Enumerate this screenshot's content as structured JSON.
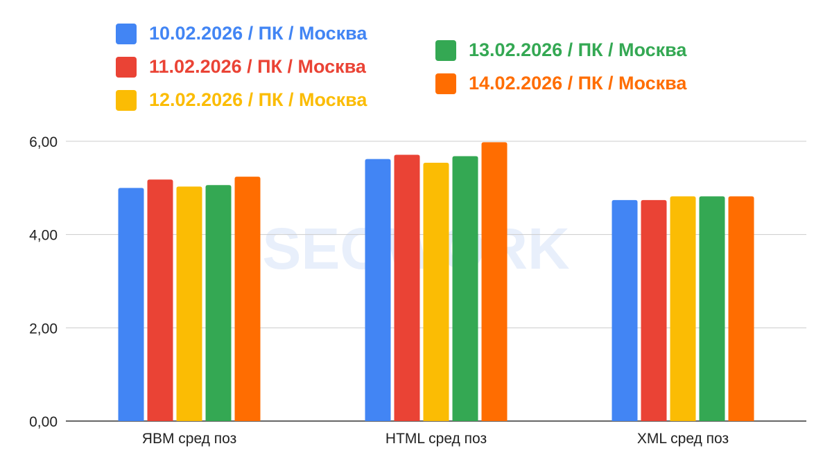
{
  "watermark": "SEOWORK",
  "chart_data": {
    "type": "bar",
    "title": "",
    "xlabel": "",
    "ylabel": "",
    "categories": [
      "ЯВМ сред поз",
      "HTML сред поз",
      "XML сред поз"
    ],
    "ylim": [
      0,
      6
    ],
    "yticks": [
      "0,00",
      "2,00",
      "4,00",
      "6,00"
    ],
    "ytick_values": [
      0,
      2,
      4,
      6
    ],
    "grid": true,
    "legend_position": "top",
    "series": [
      {
        "name": "10.02.2026 / ПК / Москва",
        "color": "#4285F4",
        "values": [
          5.0,
          5.62,
          4.74
        ]
      },
      {
        "name": "11.02.2026 / ПК / Москва",
        "color": "#EA4335",
        "values": [
          5.18,
          5.71,
          4.74
        ]
      },
      {
        "name": "12.02.2026 / ПК / Москва",
        "color": "#FBBC04",
        "values": [
          5.03,
          5.54,
          4.82
        ]
      },
      {
        "name": "13.02.2026 / ПК / Москва",
        "color": "#34A853",
        "values": [
          5.06,
          5.68,
          4.82
        ]
      },
      {
        "name": "14.02.2026 / ПК / Москва",
        "color": "#FF6D01",
        "values": [
          5.24,
          5.98,
          4.82
        ]
      }
    ]
  }
}
